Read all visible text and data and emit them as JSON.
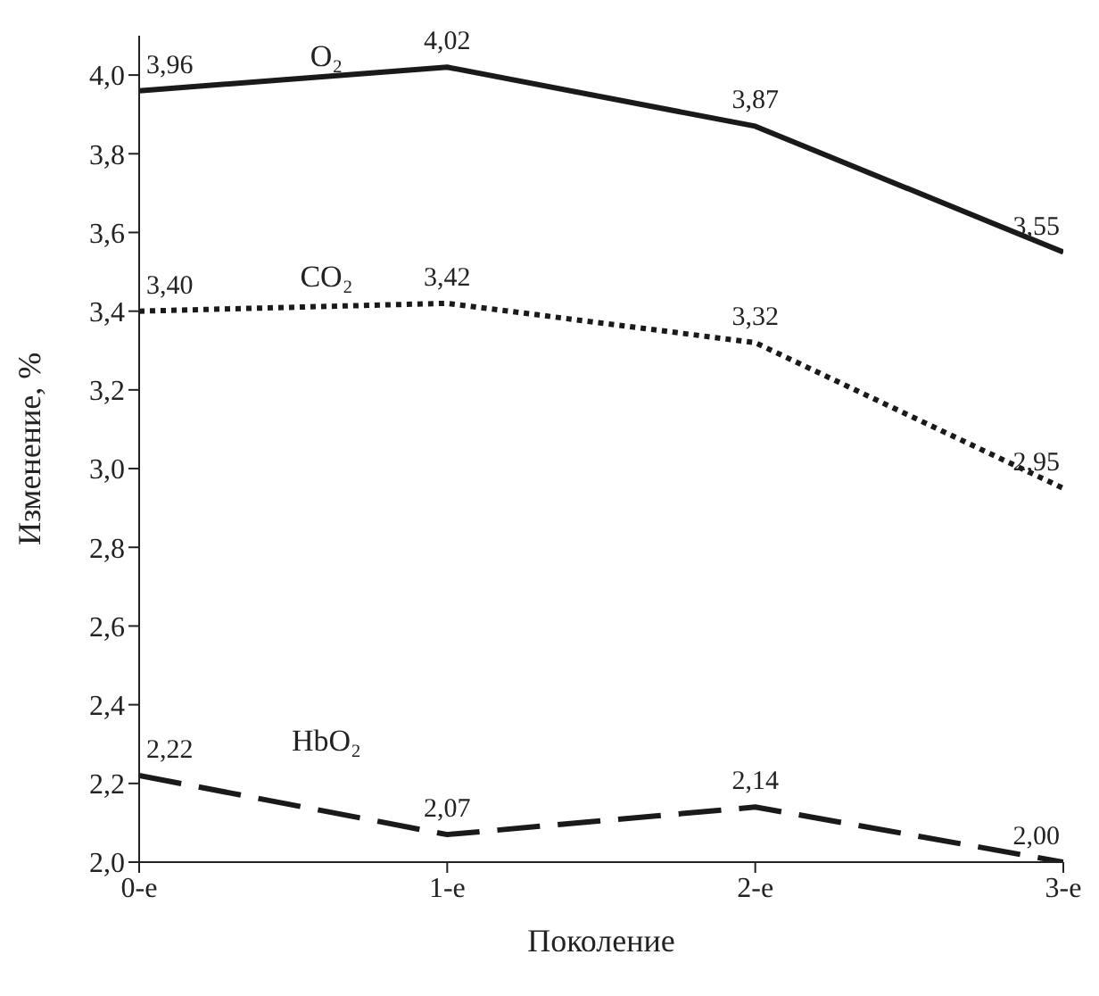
{
  "chart_data": {
    "type": "line",
    "xlabel": "Поколение",
    "ylabel": "Изменение, %",
    "categories": [
      "0-е",
      "1-е",
      "2-е",
      "3-е"
    ],
    "ylim": [
      2.0,
      4.1
    ],
    "yticks": [
      {
        "value": 2.0,
        "label": "2,0"
      },
      {
        "value": 2.2,
        "label": "2,2"
      },
      {
        "value": 2.4,
        "label": "2,4"
      },
      {
        "value": 2.6,
        "label": "2,6"
      },
      {
        "value": 2.8,
        "label": "2,8"
      },
      {
        "value": 3.0,
        "label": "3,0"
      },
      {
        "value": 3.2,
        "label": "3,2"
      },
      {
        "value": 3.4,
        "label": "3,4"
      },
      {
        "value": 3.6,
        "label": "3,6"
      },
      {
        "value": 3.8,
        "label": "3,8"
      },
      {
        "value": 4.0,
        "label": "4,0"
      }
    ],
    "grid": false,
    "legend": false,
    "marker": "none",
    "series": [
      {
        "name": "O₂",
        "color": "#1a1a1a",
        "line_style": "solid",
        "values": [
          3.96,
          4.02,
          3.87,
          3.55
        ],
        "value_labels": [
          "3,96",
          "4,02",
          "3,87",
          "3,55"
        ]
      },
      {
        "name": "CO₂",
        "color": "#1a1a1a",
        "line_style": "dotted",
        "values": [
          3.4,
          3.42,
          3.32,
          2.95
        ],
        "value_labels": [
          "3,40",
          "3,42",
          "3,32",
          "2,95"
        ]
      },
      {
        "name": "HbO₂",
        "color": "#1a1a1a",
        "line_style": "dashed",
        "values": [
          2.22,
          2.07,
          2.14,
          2.0
        ],
        "value_labels": [
          "2,22",
          "2,07",
          "2,14",
          "2,00"
        ]
      }
    ]
  }
}
